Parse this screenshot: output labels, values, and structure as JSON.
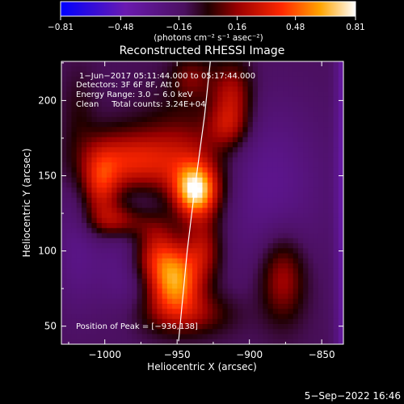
{
  "chart_data": {
    "type": "heatmap",
    "title": "Reconstructed RHESSI Image",
    "xlabel": "Heliocentric X (arcsec)",
    "ylabel": "Heliocentric Y (arcsec)",
    "xlim": [
      -1030,
      -835
    ],
    "ylim": [
      38,
      226
    ],
    "xticks": [
      -1000,
      -950,
      -900,
      -850
    ],
    "yticks": [
      50,
      100,
      150,
      200
    ],
    "xtick_labels": [
      "−1000",
      "−950",
      "−900",
      "−850"
    ],
    "ytick_labels": [
      "50",
      "100",
      "150",
      "200"
    ],
    "colorbar": {
      "min": -0.81,
      "max": 0.81,
      "ticks": [
        -0.81,
        -0.48,
        -0.16,
        0.16,
        0.48,
        0.81
      ],
      "tick_labels": [
        "−0.81",
        "−0.48",
        "−0.16",
        "0.16",
        "0.48",
        "0.81"
      ],
      "unit_label": "(photons cm⁻² s⁻¹ asec⁻²)"
    },
    "annotations": [
      "1−Jun−2017 05:11:44.000 to 05:17:44.000",
      "Detectors: 3F 6F 8F, Att 0",
      "Energy Range: 3.0 − 6.0 keV",
      "Clean     Total counts: 3.24E+04"
    ],
    "peak_label": "Position of Peak = [−936,138]",
    "peak": [
      -936,
      138
    ],
    "limb_curve": [
      [
        -949,
        40
      ],
      [
        -943,
        100
      ],
      [
        -938,
        140
      ],
      [
        -931,
        190
      ],
      [
        -927,
        226
      ]
    ],
    "sources": [
      {
        "x": -937,
        "y": 140,
        "amp": 0.75,
        "sx": 10,
        "sy": 12
      },
      {
        "x": -952,
        "y": 77,
        "amp": 0.62,
        "sx": 13,
        "sy": 12
      },
      {
        "x": -943,
        "y": 155,
        "amp": 0.35,
        "sx": 22,
        "sy": 28
      },
      {
        "x": -985,
        "y": 160,
        "amp": 0.42,
        "sx": 22,
        "sy": 14
      },
      {
        "x": -1003,
        "y": 143,
        "amp": 0.38,
        "sx": 9,
        "sy": 16
      },
      {
        "x": -990,
        "y": 120,
        "amp": 0.36,
        "sx": 14,
        "sy": 8
      },
      {
        "x": -965,
        "y": 112,
        "amp": 0.36,
        "sx": 11,
        "sy": 14
      },
      {
        "x": -958,
        "y": 93,
        "amp": 0.34,
        "sx": 16,
        "sy": 10
      },
      {
        "x": -945,
        "y": 58,
        "amp": 0.3,
        "sx": 22,
        "sy": 10
      },
      {
        "x": -932,
        "y": 102,
        "amp": 0.28,
        "sx": 9,
        "sy": 14
      },
      {
        "x": -912,
        "y": 203,
        "amp": 0.36,
        "sx": 10,
        "sy": 16
      },
      {
        "x": -915,
        "y": 182,
        "amp": 0.24,
        "sx": 10,
        "sy": 10
      },
      {
        "x": -877,
        "y": 82,
        "amp": 0.34,
        "sx": 11,
        "sy": 20
      },
      {
        "x": -940,
        "y": 215,
        "amp": 0.22,
        "sx": 10,
        "sy": 10
      },
      {
        "x": -1018,
        "y": 192,
        "amp": 0.1,
        "sx": 8,
        "sy": 20
      },
      {
        "x": -965,
        "y": 126,
        "amp": -0.28,
        "sx": 15,
        "sy": 14
      },
      {
        "x": -985,
        "y": 90,
        "amp": -0.18,
        "sx": 15,
        "sy": 24
      },
      {
        "x": -890,
        "y": 145,
        "amp": -0.2,
        "sx": 30,
        "sy": 40
      },
      {
        "x": -1020,
        "y": 100,
        "amp": -0.15,
        "sx": 12,
        "sy": 30
      }
    ]
  },
  "footer": {
    "date": "5−Sep−2022 16:46"
  }
}
